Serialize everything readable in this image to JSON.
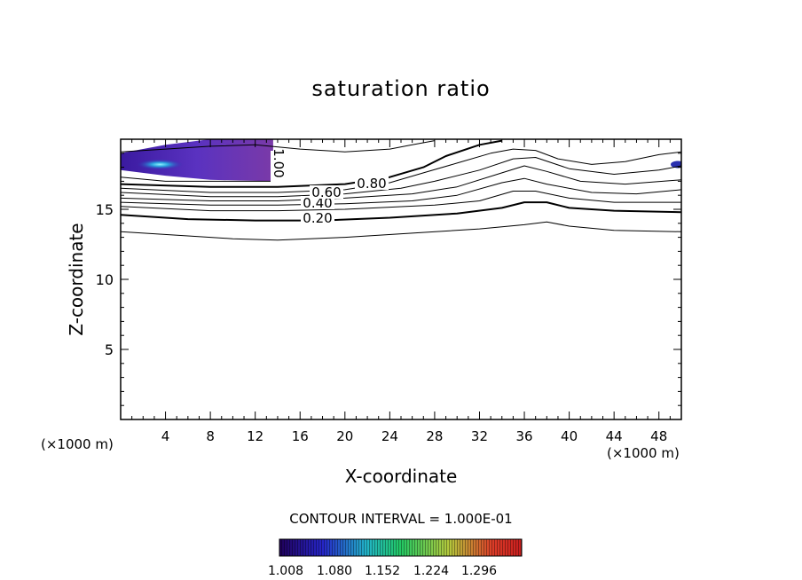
{
  "chart_data": {
    "type": "contour",
    "title": "saturation ratio",
    "xlabel": "X-coordinate",
    "ylabel": "Z-coordinate",
    "x_unit": "(×1000 m)",
    "xlim": [
      0,
      50
    ],
    "ylim": [
      0,
      20
    ],
    "xticks": [
      4,
      8,
      12,
      16,
      20,
      24,
      28,
      32,
      36,
      40,
      44,
      48
    ],
    "yticks": [
      5,
      10,
      15
    ],
    "contour_interval_text": "CONTOUR INTERVAL = 1.000E-01",
    "contour_labels": [
      "0.20",
      "0.40",
      "0.60",
      "0.80",
      "1.00"
    ],
    "contours": [
      {
        "level": 0.1,
        "bold": false,
        "labeled": false,
        "points": [
          [
            0,
            13.4
          ],
          [
            6,
            13.1
          ],
          [
            10,
            12.9
          ],
          [
            14,
            12.8
          ],
          [
            20,
            13.0
          ],
          [
            26,
            13.3
          ],
          [
            32,
            13.6
          ],
          [
            36,
            13.9
          ],
          [
            38,
            14.1
          ],
          [
            40,
            13.8
          ],
          [
            44,
            13.5
          ],
          [
            50,
            13.4
          ]
        ]
      },
      {
        "level": 0.2,
        "bold": true,
        "labeled": true,
        "points": [
          [
            0,
            14.6
          ],
          [
            6,
            14.3
          ],
          [
            12,
            14.2
          ],
          [
            18,
            14.2
          ],
          [
            24,
            14.4
          ],
          [
            30,
            14.7
          ],
          [
            34,
            15.1
          ],
          [
            36,
            15.5
          ],
          [
            38,
            15.5
          ],
          [
            40,
            15.1
          ],
          [
            44,
            14.9
          ],
          [
            50,
            14.8
          ]
        ]
      },
      {
        "level": 0.3,
        "bold": false,
        "labeled": false,
        "points": [
          [
            0,
            15.2
          ],
          [
            8,
            14.9
          ],
          [
            14,
            14.9
          ],
          [
            20,
            15.0
          ],
          [
            28,
            15.3
          ],
          [
            32,
            15.6
          ],
          [
            35,
            16.3
          ],
          [
            37,
            16.3
          ],
          [
            40,
            15.8
          ],
          [
            44,
            15.5
          ],
          [
            50,
            15.5
          ]
        ]
      },
      {
        "level": 0.4,
        "bold": false,
        "labeled": true,
        "points": [
          [
            0,
            15.5
          ],
          [
            8,
            15.3
          ],
          [
            14,
            15.3
          ],
          [
            20,
            15.4
          ],
          [
            26,
            15.6
          ],
          [
            30,
            16.0
          ],
          [
            34,
            16.9
          ],
          [
            36,
            17.2
          ],
          [
            38,
            16.8
          ],
          [
            42,
            16.2
          ],
          [
            46,
            16.1
          ],
          [
            50,
            16.4
          ]
        ]
      },
      {
        "level": 0.5,
        "bold": false,
        "labeled": false,
        "points": [
          [
            0,
            15.8
          ],
          [
            8,
            15.6
          ],
          [
            14,
            15.6
          ],
          [
            20,
            15.8
          ],
          [
            26,
            16.1
          ],
          [
            30,
            16.6
          ],
          [
            34,
            17.6
          ],
          [
            36,
            18.1
          ],
          [
            38,
            17.7
          ],
          [
            41,
            17.0
          ],
          [
            45,
            16.8
          ],
          [
            50,
            17.1
          ]
        ]
      },
      {
        "level": 0.6,
        "bold": false,
        "labeled": true,
        "points": [
          [
            0,
            16.2
          ],
          [
            8,
            15.9
          ],
          [
            14,
            15.9
          ],
          [
            20,
            16.1
          ],
          [
            25,
            16.5
          ],
          [
            28,
            17.0
          ],
          [
            32,
            17.8
          ],
          [
            35,
            18.6
          ],
          [
            37,
            18.7
          ],
          [
            40,
            17.9
          ],
          [
            44,
            17.5
          ],
          [
            48,
            17.8
          ],
          [
            50,
            18.1
          ]
        ]
      },
      {
        "level": 0.7,
        "bold": false,
        "labeled": false,
        "points": [
          [
            0,
            16.5
          ],
          [
            8,
            16.2
          ],
          [
            14,
            16.2
          ],
          [
            20,
            16.4
          ],
          [
            24,
            16.9
          ],
          [
            27,
            17.6
          ],
          [
            30,
            18.3
          ],
          [
            33,
            19.0
          ],
          [
            35,
            19.3
          ],
          [
            37,
            19.2
          ],
          [
            39,
            18.6
          ],
          [
            42,
            18.2
          ],
          [
            45,
            18.4
          ],
          [
            48,
            18.9
          ],
          [
            50,
            19.1
          ]
        ]
      },
      {
        "level": 0.8,
        "bold": true,
        "labeled": true,
        "points": [
          [
            0,
            16.8
          ],
          [
            8,
            16.6
          ],
          [
            14,
            16.6
          ],
          [
            20,
            16.8
          ],
          [
            24,
            17.3
          ],
          [
            27,
            18.0
          ],
          [
            29,
            18.8
          ],
          [
            32,
            19.6
          ],
          [
            34,
            19.9
          ]
        ]
      },
      {
        "level": 0.9,
        "bold": false,
        "labeled": false,
        "points": [
          [
            0,
            19.1
          ],
          [
            4,
            19.3
          ],
          [
            8,
            19.5
          ],
          [
            12,
            19.6
          ],
          [
            16,
            19.3
          ],
          [
            20,
            19.1
          ],
          [
            24,
            19.3
          ],
          [
            26,
            19.6
          ],
          [
            28,
            19.9
          ]
        ]
      },
      {
        "level": 1.0,
        "bold": false,
        "labeled": true,
        "points": [
          [
            0,
            17.3
          ],
          [
            4,
            17.0
          ],
          [
            8,
            17.0
          ],
          [
            13.6,
            17.0
          ]
        ]
      }
    ],
    "filled_region": {
      "description_level": "saturation ratio > 1",
      "polygon": [
        [
          0,
          19.0
        ],
        [
          4,
          19.6
        ],
        [
          8,
          20
        ],
        [
          13.6,
          20
        ],
        [
          13.6,
          17.0
        ],
        [
          8,
          17.1
        ],
        [
          4,
          17.4
        ],
        [
          0,
          17.8
        ]
      ],
      "peak": [
        3.5,
        18.2
      ]
    },
    "colorbar": {
      "ticks": [
        "1.008",
        "1.080",
        "1.152",
        "1.224",
        "1.296"
      ],
      "colors": [
        "#20005a",
        "#2626c8",
        "#22b4c8",
        "#22c864",
        "#b4c83c",
        "#dc3c28",
        "#c81e1e"
      ]
    }
  }
}
